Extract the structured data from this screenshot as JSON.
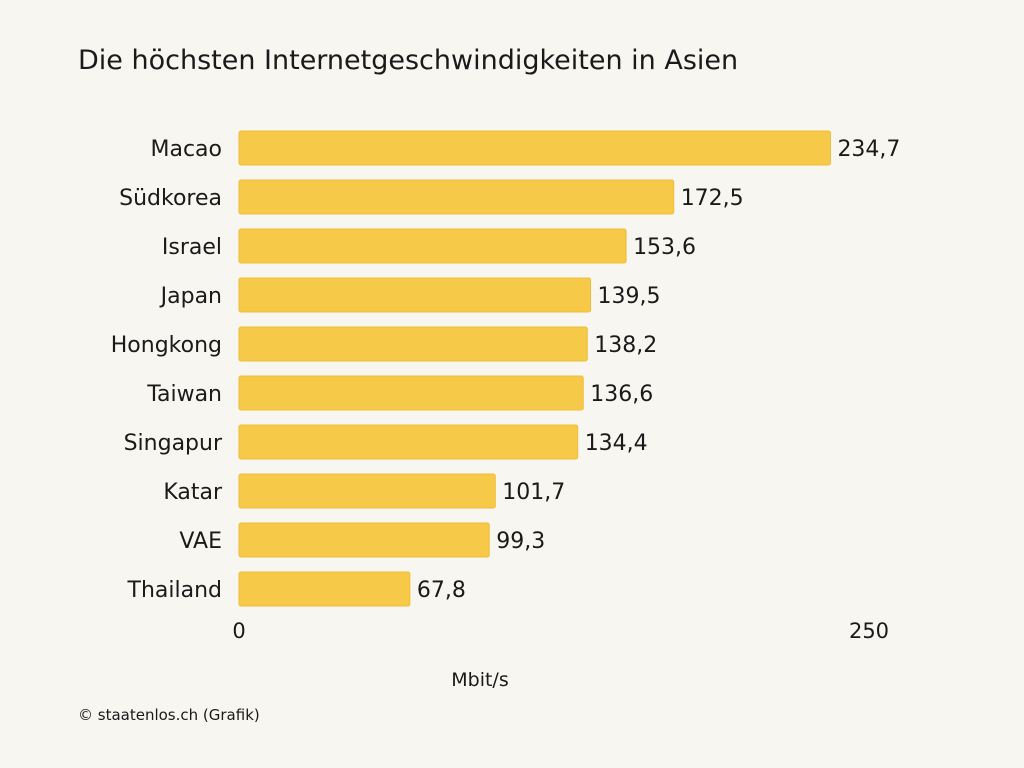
{
  "chart_data": {
    "type": "bar",
    "orientation": "horizontal",
    "title": "Die höchsten Internetgeschwindigkeiten in Asien",
    "categories": [
      "Macao",
      "Südkorea",
      "Israel",
      "Japan",
      "Hongkong",
      "Taiwan",
      "Singapur",
      "Katar",
      "VAE",
      "Thailand"
    ],
    "values": [
      234.7,
      172.5,
      153.6,
      139.5,
      138.2,
      136.6,
      134.4,
      101.7,
      99.3,
      67.8
    ],
    "value_labels": [
      "234,7",
      "172,5",
      "153,6",
      "139,5",
      "138,2",
      "136,6",
      "134,4",
      "101,7",
      "99,3",
      "67,8"
    ],
    "xlabel": "Mbit/s",
    "ylabel": "",
    "xlim": [
      0,
      250
    ],
    "x_ticks": [
      "0",
      "250"
    ],
    "grid": false
  },
  "credit": "© staatenlos.ch (Grafik)",
  "colors": {
    "background": "#f8f6f1",
    "bar": "#f7c948",
    "bar_stroke": "#efbd38",
    "text": "#1a1a1a"
  }
}
